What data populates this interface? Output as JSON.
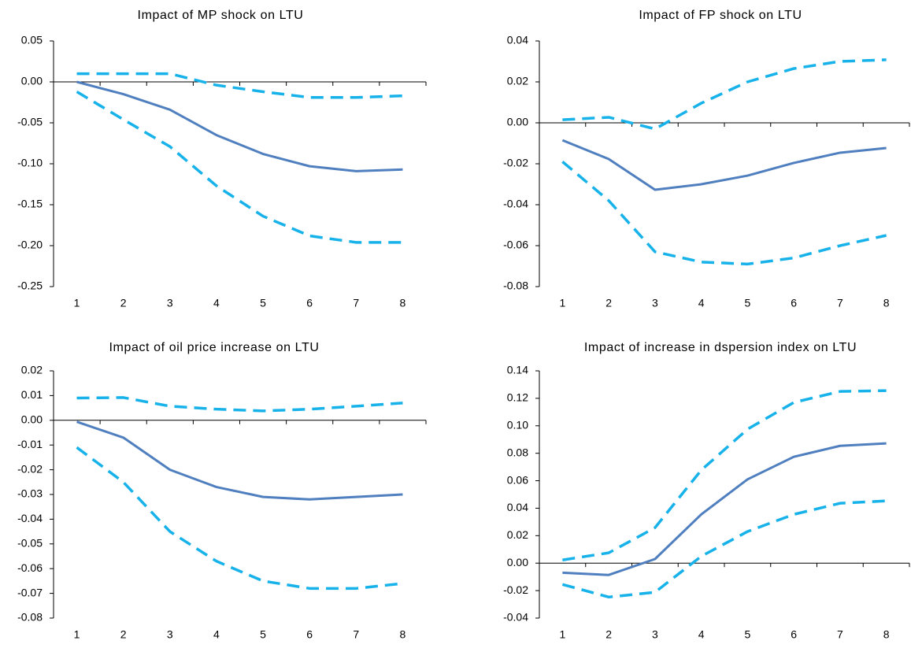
{
  "chart_data": [
    {
      "type": "line",
      "title": "Impact of MP shock on LTU",
      "categories": [
        "1",
        "2",
        "3",
        "4",
        "5",
        "6",
        "7",
        "8"
      ],
      "series": [
        {
          "color": "#4f7fbf",
          "dashed": false,
          "values": [
            0,
            -0.015,
            -0.034,
            -0.065,
            -0.088,
            -0.103,
            -0.109,
            -0.107
          ]
        },
        {
          "color": "#17b2ea",
          "dashed": true,
          "values": [
            0.01,
            0.01,
            0.01,
            -0.004,
            -0.012,
            -0.019,
            -0.019,
            -0.017
          ]
        },
        {
          "color": "#17b2ea",
          "dashed": true,
          "values": [
            -0.012,
            -0.046,
            -0.079,
            -0.127,
            -0.164,
            -0.188,
            -0.196,
            -0.196
          ]
        }
      ],
      "ylim": [
        -0.25,
        0.05
      ],
      "yticks": [
        -0.25,
        {
          "value": -0.2,
          "label": "-0.20"
        },
        -0.15,
        {
          "value": -0.1,
          "label": "-0.10"
        },
        -0.05,
        {
          "value": 0,
          "label": "0.00"
        },
        0.05
      ]
    },
    {
      "type": "line",
      "title": "Impact of FP shock on LTU",
      "categories": [
        "1",
        "2",
        "3",
        "4",
        "5",
        "6",
        "7",
        "8"
      ],
      "series": [
        {
          "color": "#4f7fbf",
          "dashed": false,
          "values": [
            -0.0085,
            -0.0177,
            -0.0327,
            -0.03,
            -0.0258,
            -0.0196,
            -0.0146,
            -0.0123
          ]
        },
        {
          "color": "#17b2ea",
          "dashed": true,
          "values": [
            0.0015,
            0.0027,
            -0.003,
            0.0096,
            0.02,
            0.0265,
            0.03,
            0.0308
          ]
        },
        {
          "color": "#17b2ea",
          "dashed": true,
          "values": [
            -0.019,
            -0.038,
            -0.063,
            -0.068,
            -0.069,
            -0.066,
            -0.06,
            -0.055
          ]
        }
      ],
      "ylim": [
        -0.08,
        0.04
      ],
      "yticks": [
        -0.08,
        -0.06,
        -0.04,
        -0.02,
        {
          "value": 0,
          "label": "0.00"
        },
        0.02,
        0.04
      ]
    },
    {
      "type": "line",
      "title": "Impact of oil price increase on LTU",
      "categories": [
        "1",
        "2",
        "3",
        "4",
        "5",
        "6",
        "7",
        "8"
      ],
      "series": [
        {
          "color": "#4f7fbf",
          "dashed": false,
          "values": [
            -0.0006,
            -0.007,
            -0.02,
            -0.027,
            -0.031,
            -0.032,
            -0.031,
            -0.03
          ]
        },
        {
          "color": "#17b2ea",
          "dashed": true,
          "values": [
            0.009,
            0.0092,
            0.0057,
            0.0045,
            0.0038,
            0.0045,
            0.0057,
            0.007
          ]
        },
        {
          "color": "#17b2ea",
          "dashed": true,
          "values": [
            -0.011,
            -0.025,
            -0.045,
            -0.057,
            -0.065,
            -0.068,
            -0.068,
            -0.066
          ]
        }
      ],
      "ylim": [
        -0.08,
        0.02
      ],
      "yticks": [
        -0.08,
        -0.07,
        -0.06,
        -0.05,
        -0.04,
        -0.03,
        -0.02,
        -0.01,
        {
          "value": 0,
          "label": "0.00"
        },
        0.01,
        0.02
      ]
    },
    {
      "type": "line",
      "title": "Impact of increase in dspersion index on LTU",
      "categories": [
        "1",
        "2",
        "3",
        "4",
        "5",
        "6",
        "7",
        "8"
      ],
      "series": [
        {
          "color": "#4f7fbf",
          "dashed": false,
          "values": [
            -0.007,
            -0.0086,
            0.003,
            0.0355,
            0.061,
            0.0774,
            0.0854,
            0.0872
          ]
        },
        {
          "color": "#17b2ea",
          "dashed": true,
          "values": [
            0.0023,
            0.0075,
            0.0258,
            0.0677,
            0.0975,
            0.117,
            0.125,
            0.1256
          ]
        },
        {
          "color": "#17b2ea",
          "dashed": true,
          "values": [
            -0.0155,
            -0.0247,
            -0.0212,
            0.005,
            0.023,
            0.0355,
            0.0436,
            0.0453
          ]
        }
      ],
      "ylim": [
        -0.04,
        0.14
      ],
      "yticks": [
        -0.04,
        -0.02,
        {
          "value": 0,
          "label": "0.00"
        },
        0.02,
        0.04,
        0.06,
        0.08,
        {
          "value": 0.1,
          "label": "0.10"
        },
        0.12,
        0.14
      ]
    }
  ]
}
